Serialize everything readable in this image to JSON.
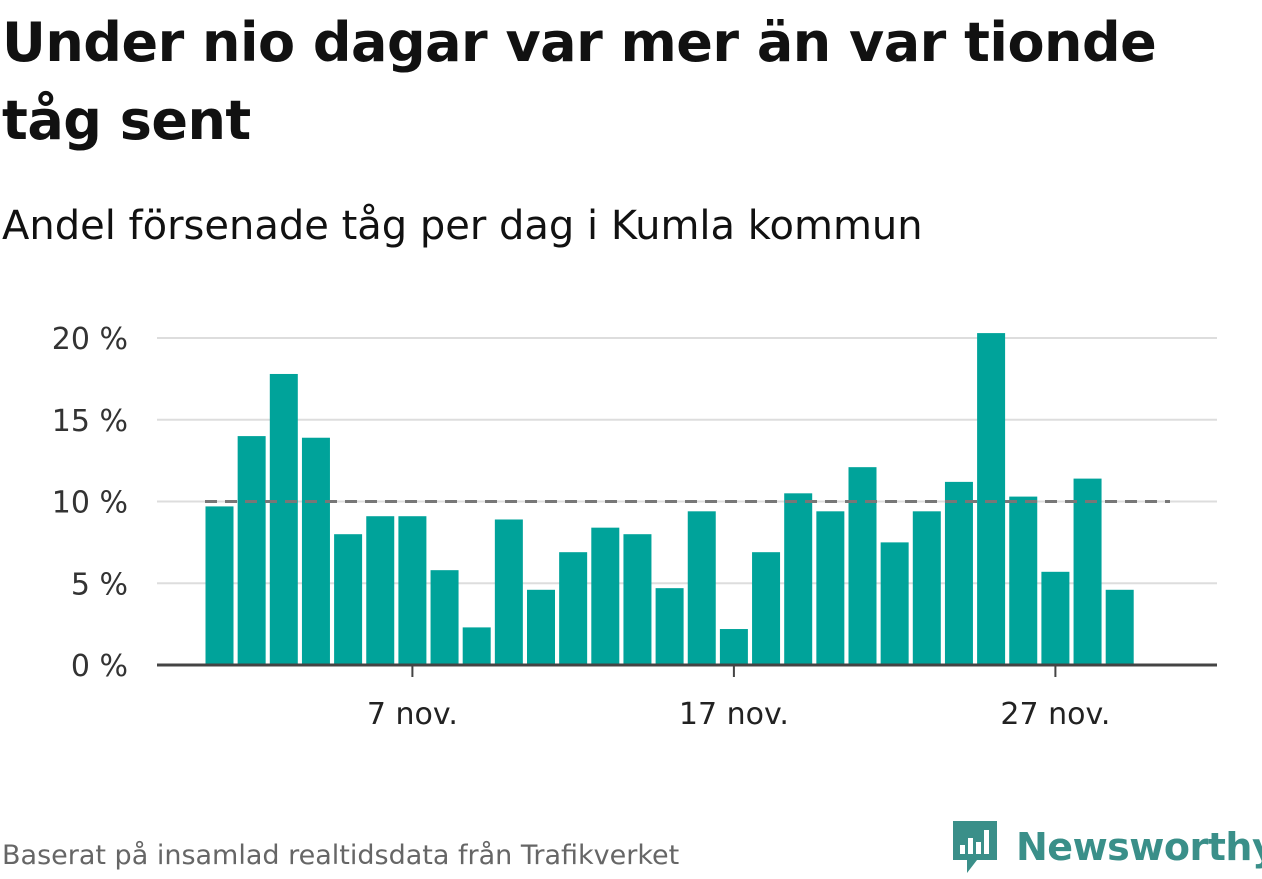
{
  "title": "Under nio dagar var mer än var tionde tåg sent",
  "subtitle": "Andel försenade tåg per dag i Kumla kommun",
  "source": "Baserat på insamlad realtidsdata från Trafikverket",
  "brand": {
    "name": "Newsworthy",
    "icon": "bar-chart-speech-bubble-icon",
    "color": "#3a8f89"
  },
  "colors": {
    "bar": "#00a39a",
    "reference_line": "#777777",
    "grid": "#dddddd",
    "axis": "#444444"
  },
  "chart_data": {
    "type": "bar",
    "x": [
      "1 nov.",
      "2 nov.",
      "3 nov.",
      "4 nov.",
      "5 nov.",
      "6 nov.",
      "7 nov.",
      "8 nov.",
      "9 nov.",
      "10 nov.",
      "11 nov.",
      "12 nov.",
      "13 nov.",
      "14 nov.",
      "15 nov.",
      "16 nov.",
      "17 nov.",
      "18 nov.",
      "19 nov.",
      "20 nov.",
      "21 nov.",
      "22 nov.",
      "23 nov.",
      "24 nov.",
      "25 nov.",
      "26 nov.",
      "27 nov.",
      "28 nov.",
      "29 nov."
    ],
    "values": [
      9.7,
      14.0,
      17.8,
      13.9,
      8.0,
      9.1,
      9.1,
      5.8,
      2.3,
      8.9,
      4.6,
      6.9,
      8.4,
      8.0,
      4.7,
      9.4,
      2.2,
      6.9,
      10.5,
      9.4,
      12.1,
      7.5,
      9.4,
      11.2,
      20.3,
      10.3,
      5.7,
      11.4,
      4.6
    ],
    "y_unit": "%",
    "ylim": [
      0,
      20
    ],
    "yticks": [
      0,
      5,
      10,
      15,
      20
    ],
    "ytick_labels": [
      "0 %",
      "5 %",
      "10 %",
      "15 %",
      "20 %"
    ],
    "xtick_labels": [
      {
        "x": "7 nov.",
        "label": "7 nov."
      },
      {
        "x": "17 nov.",
        "label": "17 nov."
      },
      {
        "x": "27 nov.",
        "label": "27 nov."
      }
    ],
    "reference_line": {
      "value": 10,
      "style": "dashed"
    },
    "grid": true,
    "legend": false,
    "title": "Under nio dagar var mer än var tionde tåg sent",
    "subtitle": "Andel försenade tåg per dag i Kumla kommun",
    "xlabel": "",
    "ylabel": ""
  }
}
